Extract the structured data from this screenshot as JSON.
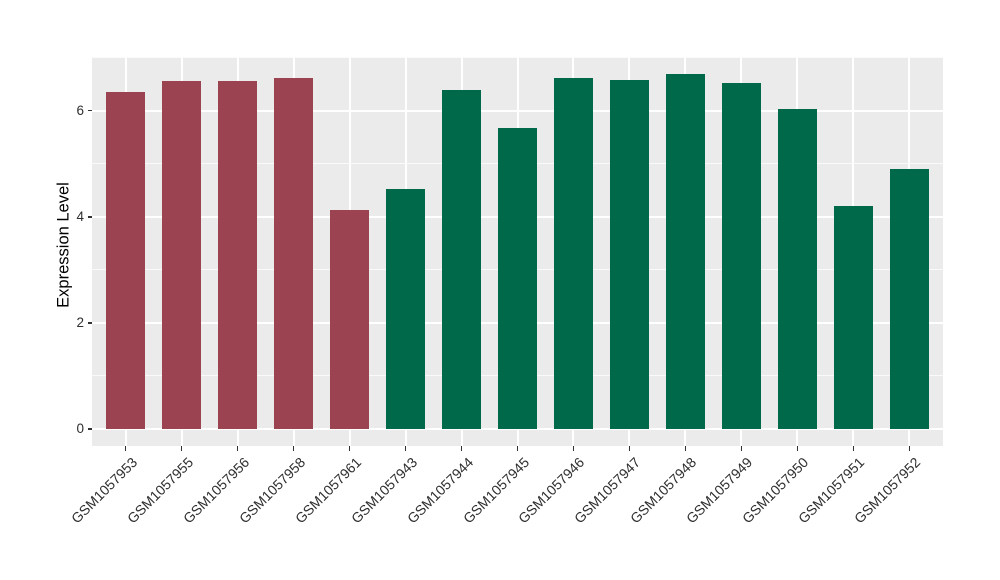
{
  "chart_data": {
    "type": "bar",
    "title": "",
    "xlabel": "",
    "ylabel": "Expression Level",
    "categories": [
      "GSM1057953",
      "GSM1057955",
      "GSM1057956",
      "GSM1057958",
      "GSM1057961",
      "GSM1057943",
      "GSM1057944",
      "GSM1057945",
      "GSM1057946",
      "GSM1057947",
      "GSM1057948",
      "GSM1057949",
      "GSM1057950",
      "GSM1057951",
      "GSM1057952"
    ],
    "values": [
      6.35,
      6.56,
      6.56,
      6.62,
      4.13,
      4.52,
      6.39,
      5.67,
      6.62,
      6.58,
      6.69,
      6.52,
      6.03,
      4.2,
      4.9
    ],
    "bar_colors": [
      "#9B4350",
      "#9B4350",
      "#9B4350",
      "#9B4350",
      "#9B4350",
      "#00694A",
      "#00694A",
      "#00694A",
      "#00694A",
      "#00694A",
      "#00694A",
      "#00694A",
      "#00694A",
      "#00694A",
      "#00694A"
    ],
    "color_groups": {
      "red": "#9B4350",
      "green": "#00694A"
    },
    "y_ticks": [
      0,
      2,
      4,
      6
    ],
    "y_minor_ticks": [
      1,
      3,
      5,
      7
    ],
    "ylim": [
      -0.35,
      7.05
    ],
    "legend": "none",
    "grid": {
      "horizontal": true,
      "vertical_per_category": true,
      "color": "#FFFFFF"
    },
    "panel_background": "#EBEBEB",
    "tick_mark_color": "#333333",
    "axis_text_color": "#2e2e2e",
    "bar_width_fraction": 0.7
  }
}
